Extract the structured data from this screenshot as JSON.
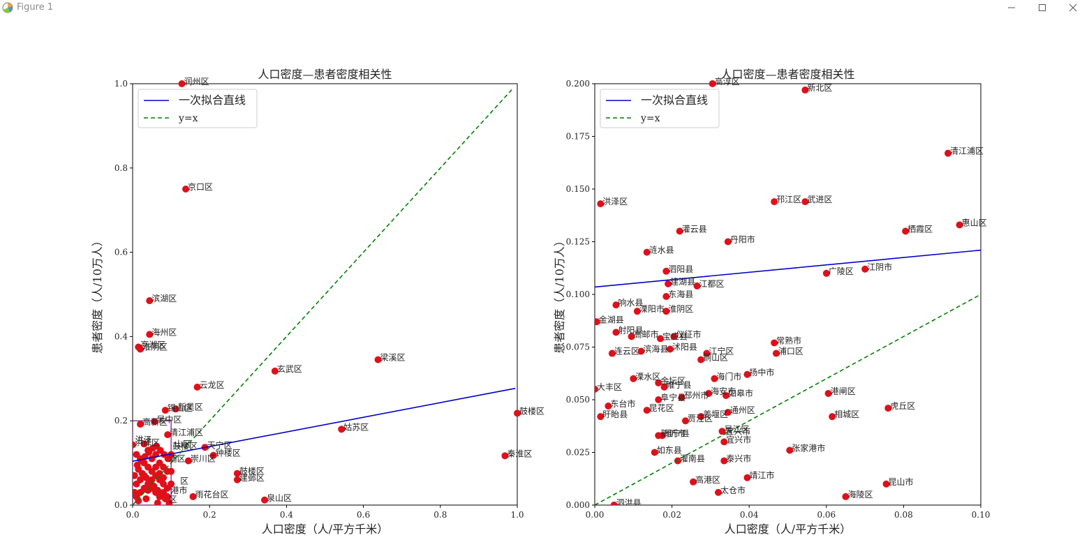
{
  "window": {
    "title": "Figure 1",
    "controls": {
      "minimize_icon": "minimize-icon",
      "maximize_icon": "maximize-icon",
      "close_icon": "close-icon"
    }
  },
  "colors": {
    "fit_line": "#0000cc",
    "identity_line": "#008000",
    "points": "#e0101a",
    "box": "#800080"
  },
  "chart_data": [
    {
      "type": "scatter",
      "title": "人口密度—患者密度相关性",
      "xlabel": "人口密度（人/平方千米）",
      "ylabel": "患者密度（人/10万人）",
      "xlim": [
        0,
        1.0
      ],
      "ylim": [
        0,
        1.0
      ],
      "xticks": [
        "0.0",
        "0.2",
        "0.4",
        "0.6",
        "0.8",
        "1.0"
      ],
      "yticks": [
        "0.0",
        "0.2",
        "0.4",
        "0.6",
        "0.8",
        "1.0"
      ],
      "legend": {
        "location": "upper-left",
        "entries": [
          "一次拟合直线",
          "y=x"
        ]
      },
      "fit_line": {
        "name": "一次拟合直线",
        "x": [
          0.0,
          0.995
        ],
        "y": [
          0.104,
          0.277
        ]
      },
      "identity_line": {
        "name": "y=x",
        "x": [
          0.0,
          0.99
        ],
        "y": [
          0.0,
          0.99
        ]
      },
      "zoom_box": {
        "x": [
          0,
          0.1
        ],
        "y": [
          0,
          0.2
        ]
      },
      "labeled_points": [
        {
          "label": "润州区",
          "x": 0.128,
          "y": 1.0
        },
        {
          "label": "京口区",
          "x": 0.138,
          "y": 0.75
        },
        {
          "label": "滨湖区",
          "x": 0.044,
          "y": 0.485
        },
        {
          "label": "海州区",
          "x": 0.044,
          "y": 0.405
        },
        {
          "label": "亭湖区",
          "x": 0.015,
          "y": 0.375
        },
        {
          "label": "淮阴区",
          "x": 0.02,
          "y": 0.37
        },
        {
          "label": "玄武区",
          "x": 0.37,
          "y": 0.318
        },
        {
          "label": "梁溪区",
          "x": 0.638,
          "y": 0.345
        },
        {
          "label": "云龙区",
          "x": 0.168,
          "y": 0.28
        },
        {
          "label": "锡山区",
          "x": 0.085,
          "y": 0.225
        },
        {
          "label": "新吴区",
          "x": 0.112,
          "y": 0.228
        },
        {
          "label": "鼓楼区",
          "x": 1.0,
          "y": 0.218
        },
        {
          "label": "高新区",
          "x": 0.02,
          "y": 0.192
        },
        {
          "label": "吴中区",
          "x": 0.057,
          "y": 0.198
        },
        {
          "label": "清江浦区",
          "x": 0.091,
          "y": 0.167
        },
        {
          "label": "姑苏区",
          "x": 0.543,
          "y": 0.18
        },
        {
          "label": "天宁区",
          "x": 0.188,
          "y": 0.137
        },
        {
          "label": "钟楼区",
          "x": 0.21,
          "y": 0.118
        },
        {
          "label": "崇川区",
          "x": 0.145,
          "y": 0.105
        },
        {
          "label": "秦淮区",
          "x": 0.968,
          "y": 0.117
        },
        {
          "label": "鼓楼区",
          "x": 0.272,
          "y": 0.075
        },
        {
          "label": "建邺区",
          "x": 0.272,
          "y": 0.06
        },
        {
          "label": "雨花台区",
          "x": 0.157,
          "y": 0.02
        },
        {
          "label": "泉山区",
          "x": 0.343,
          "y": 0.012
        },
        {
          "label": "洪泽区",
          "x": 0.0,
          "y": 0.143
        }
      ],
      "cluster_points": [
        [
          0.01,
          0.12
        ],
        [
          0.02,
          0.11
        ],
        [
          0.03,
          0.1
        ],
        [
          0.04,
          0.09
        ],
        [
          0.05,
          0.08
        ],
        [
          0.06,
          0.07
        ],
        [
          0.07,
          0.06
        ],
        [
          0.08,
          0.05
        ],
        [
          0.09,
          0.04
        ],
        [
          0.01,
          0.05
        ],
        [
          0.02,
          0.06
        ],
        [
          0.03,
          0.07
        ],
        [
          0.04,
          0.05
        ],
        [
          0.05,
          0.04
        ],
        [
          0.06,
          0.03
        ],
        [
          0.07,
          0.02
        ],
        [
          0.08,
          0.03
        ],
        [
          0.09,
          0.02
        ],
        [
          0.01,
          0.02
        ],
        [
          0.02,
          0.03
        ],
        [
          0.03,
          0.04
        ],
        [
          0.04,
          0.13
        ],
        [
          0.05,
          0.11
        ],
        [
          0.06,
          0.12
        ],
        [
          0.07,
          0.1
        ],
        [
          0.08,
          0.09
        ],
        [
          0.09,
          0.08
        ],
        [
          0.015,
          0.085
        ],
        [
          0.025,
          0.075
        ],
        [
          0.035,
          0.065
        ],
        [
          0.045,
          0.055
        ],
        [
          0.055,
          0.045
        ],
        [
          0.065,
          0.035
        ],
        [
          0.075,
          0.025
        ],
        [
          0.085,
          0.015
        ],
        [
          0.095,
          0.005
        ],
        [
          0.012,
          0.095
        ],
        [
          0.022,
          0.105
        ],
        [
          0.032,
          0.115
        ],
        [
          0.042,
          0.125
        ],
        [
          0.052,
          0.135
        ],
        [
          0.062,
          0.14
        ],
        [
          0.072,
          0.13
        ],
        [
          0.082,
          0.12
        ],
        [
          0.092,
          0.11
        ],
        [
          0.005,
          0.03
        ],
        [
          0.005,
          0.07
        ],
        [
          0.015,
          0.01
        ],
        [
          0.035,
          0.015
        ],
        [
          0.05,
          0.06
        ],
        [
          0.06,
          0.09
        ],
        [
          0.07,
          0.075
        ],
        [
          0.08,
          0.065
        ],
        [
          0.1,
          0.12
        ],
        [
          0.1,
          0.08
        ],
        [
          0.1,
          0.05
        ],
        [
          0.03,
          0.145
        ],
        [
          0.04,
          0.035
        ],
        [
          0.065,
          0.005
        ]
      ],
      "cluster_labels": [
        {
          "text": "洪泽",
          "x": 0.003,
          "y": 0.15
        },
        {
          "text": "鼓楼区",
          "x": 0.1,
          "y": 0.135
        },
        {
          "text": "山区",
          "x": 0.105,
          "y": 0.14
        },
        {
          "text": "浦区",
          "x": 0.09,
          "y": 0.105
        },
        {
          "text": "区",
          "x": 0.12,
          "y": 0.052
        },
        {
          "text": "港市",
          "x": 0.095,
          "y": 0.03
        },
        {
          "text": "区",
          "x": 0.09,
          "y": 0.008
        }
      ]
    },
    {
      "type": "scatter",
      "title": "人口密度—患者密度相关性",
      "xlabel": "人口密度（人/平方千米）",
      "ylabel": "患者密度（人/10万人）",
      "xlim": [
        0,
        0.1
      ],
      "ylim": [
        0,
        0.2
      ],
      "xticks": [
        "0.00",
        "0.02",
        "0.04",
        "0.06",
        "0.08",
        "0.10"
      ],
      "yticks": [
        "0.000",
        "0.025",
        "0.050",
        "0.075",
        "0.100",
        "0.125",
        "0.150",
        "0.175",
        "0.200"
      ],
      "legend": {
        "location": "upper-left",
        "entries": [
          "一次拟合直线",
          "y=x"
        ]
      },
      "fit_line": {
        "name": "一次拟合直线",
        "x": [
          0.0,
          0.1
        ],
        "y": [
          0.1035,
          0.121
        ]
      },
      "identity_line": {
        "name": "y=x",
        "x": [
          0.0,
          0.1
        ],
        "y": [
          0.0,
          0.1
        ]
      },
      "labeled_points": [
        {
          "label": "高淳区",
          "x": 0.0305,
          "y": 0.2
        },
        {
          "label": "新北区",
          "x": 0.0545,
          "y": 0.197
        },
        {
          "label": "清江浦区",
          "x": 0.0915,
          "y": 0.167
        },
        {
          "label": "洪泽区",
          "x": 0.0015,
          "y": 0.143
        },
        {
          "label": "邗江区",
          "x": 0.0465,
          "y": 0.144
        },
        {
          "label": "武进区",
          "x": 0.0545,
          "y": 0.144
        },
        {
          "label": "灌云县",
          "x": 0.022,
          "y": 0.13
        },
        {
          "label": "栖霞区",
          "x": 0.0805,
          "y": 0.13
        },
        {
          "label": "惠山区",
          "x": 0.0945,
          "y": 0.133
        },
        {
          "label": "丹阳市",
          "x": 0.0345,
          "y": 0.125
        },
        {
          "label": "涟水县",
          "x": 0.0135,
          "y": 0.12
        },
        {
          "label": "泗阳县",
          "x": 0.0185,
          "y": 0.111
        },
        {
          "label": "广陵区",
          "x": 0.06,
          "y": 0.11
        },
        {
          "label": "江阴市",
          "x": 0.07,
          "y": 0.112
        },
        {
          "label": "建湖县",
          "x": 0.019,
          "y": 0.105
        },
        {
          "label": "江都区",
          "x": 0.0265,
          "y": 0.104
        },
        {
          "label": "东海县",
          "x": 0.0185,
          "y": 0.099
        },
        {
          "label": "响水县",
          "x": 0.0055,
          "y": 0.095
        },
        {
          "label": "溧阳市",
          "x": 0.011,
          "y": 0.092
        },
        {
          "label": "淮阴区",
          "x": 0.0185,
          "y": 0.092
        },
        {
          "label": "金湖县",
          "x": 0.0005,
          "y": 0.087
        },
        {
          "label": "射阳县",
          "x": 0.0055,
          "y": 0.082
        },
        {
          "label": "高邮市",
          "x": 0.0095,
          "y": 0.08
        },
        {
          "label": "宝应县",
          "x": 0.017,
          "y": 0.079
        },
        {
          "label": "仪征市",
          "x": 0.0205,
          "y": 0.08
        },
        {
          "label": "滨海县",
          "x": 0.012,
          "y": 0.073
        },
        {
          "label": "沭阳县",
          "x": 0.0195,
          "y": 0.074
        },
        {
          "label": "江宁区",
          "x": 0.029,
          "y": 0.072
        },
        {
          "label": "连云区",
          "x": 0.0045,
          "y": 0.072
        },
        {
          "label": "常熟市",
          "x": 0.0465,
          "y": 0.077
        },
        {
          "label": "浦口区",
          "x": 0.047,
          "y": 0.072
        },
        {
          "label": "铜山区",
          "x": 0.0275,
          "y": 0.069
        },
        {
          "label": "扬中市",
          "x": 0.0395,
          "y": 0.062
        },
        {
          "label": "海门市",
          "x": 0.031,
          "y": 0.06
        },
        {
          "label": "溧水区",
          "x": 0.01,
          "y": 0.06
        },
        {
          "label": "金坛区",
          "x": 0.0165,
          "y": 0.058
        },
        {
          "label": "睢宁县",
          "x": 0.018,
          "y": 0.056
        },
        {
          "label": "大丰区",
          "x": 0.0,
          "y": 0.055
        },
        {
          "label": "海安市",
          "x": 0.0295,
          "y": 0.053
        },
        {
          "label": "如皋市",
          "x": 0.034,
          "y": 0.052
        },
        {
          "label": "邳州市",
          "x": 0.0225,
          "y": 0.051
        },
        {
          "label": "阜宁县",
          "x": 0.0165,
          "y": 0.05
        },
        {
          "label": "港闸区",
          "x": 0.0605,
          "y": 0.053
        },
        {
          "label": "东台市",
          "x": 0.0035,
          "y": 0.047
        },
        {
          "label": "昆花区",
          "x": 0.0135,
          "y": 0.045
        },
        {
          "label": "虎丘区",
          "x": 0.076,
          "y": 0.046
        },
        {
          "label": "盱眙县",
          "x": 0.0015,
          "y": 0.042
        },
        {
          "label": "姜堰区",
          "x": 0.0275,
          "y": 0.042
        },
        {
          "label": "通州区",
          "x": 0.0345,
          "y": 0.044
        },
        {
          "label": "相城区",
          "x": 0.0615,
          "y": 0.042
        },
        {
          "label": "贾汪区",
          "x": 0.0235,
          "y": 0.04
        },
        {
          "label": "吴江区",
          "x": 0.033,
          "y": 0.035
        },
        {
          "label": "睢宁县",
          "x": 0.0175,
          "y": 0.033
        },
        {
          "label": "新沂市",
          "x": 0.0165,
          "y": 0.033
        },
        {
          "label": "宜兴市",
          "x": 0.0335,
          "y": 0.03
        },
        {
          "label": "如东县",
          "x": 0.0155,
          "y": 0.025
        },
        {
          "label": "张家港市",
          "x": 0.0505,
          "y": 0.026
        },
        {
          "label": "灌南县",
          "x": 0.0215,
          "y": 0.021
        },
        {
          "label": "泰兴市",
          "x": 0.0335,
          "y": 0.021
        },
        {
          "label": "高港区",
          "x": 0.0255,
          "y": 0.011
        },
        {
          "label": "靖江市",
          "x": 0.0395,
          "y": 0.013
        },
        {
          "label": "太仓市",
          "x": 0.032,
          "y": 0.006
        },
        {
          "label": "昆山市",
          "x": 0.0755,
          "y": 0.01
        },
        {
          "label": "海陵区",
          "x": 0.065,
          "y": 0.004
        },
        {
          "label": "泗洪县",
          "x": 0.005,
          "y": 0.0
        }
      ],
      "cluster_labels": [
        {
          "text": "宜兴市",
          "x": 0.0335,
          "y": 0.034
        }
      ]
    }
  ]
}
